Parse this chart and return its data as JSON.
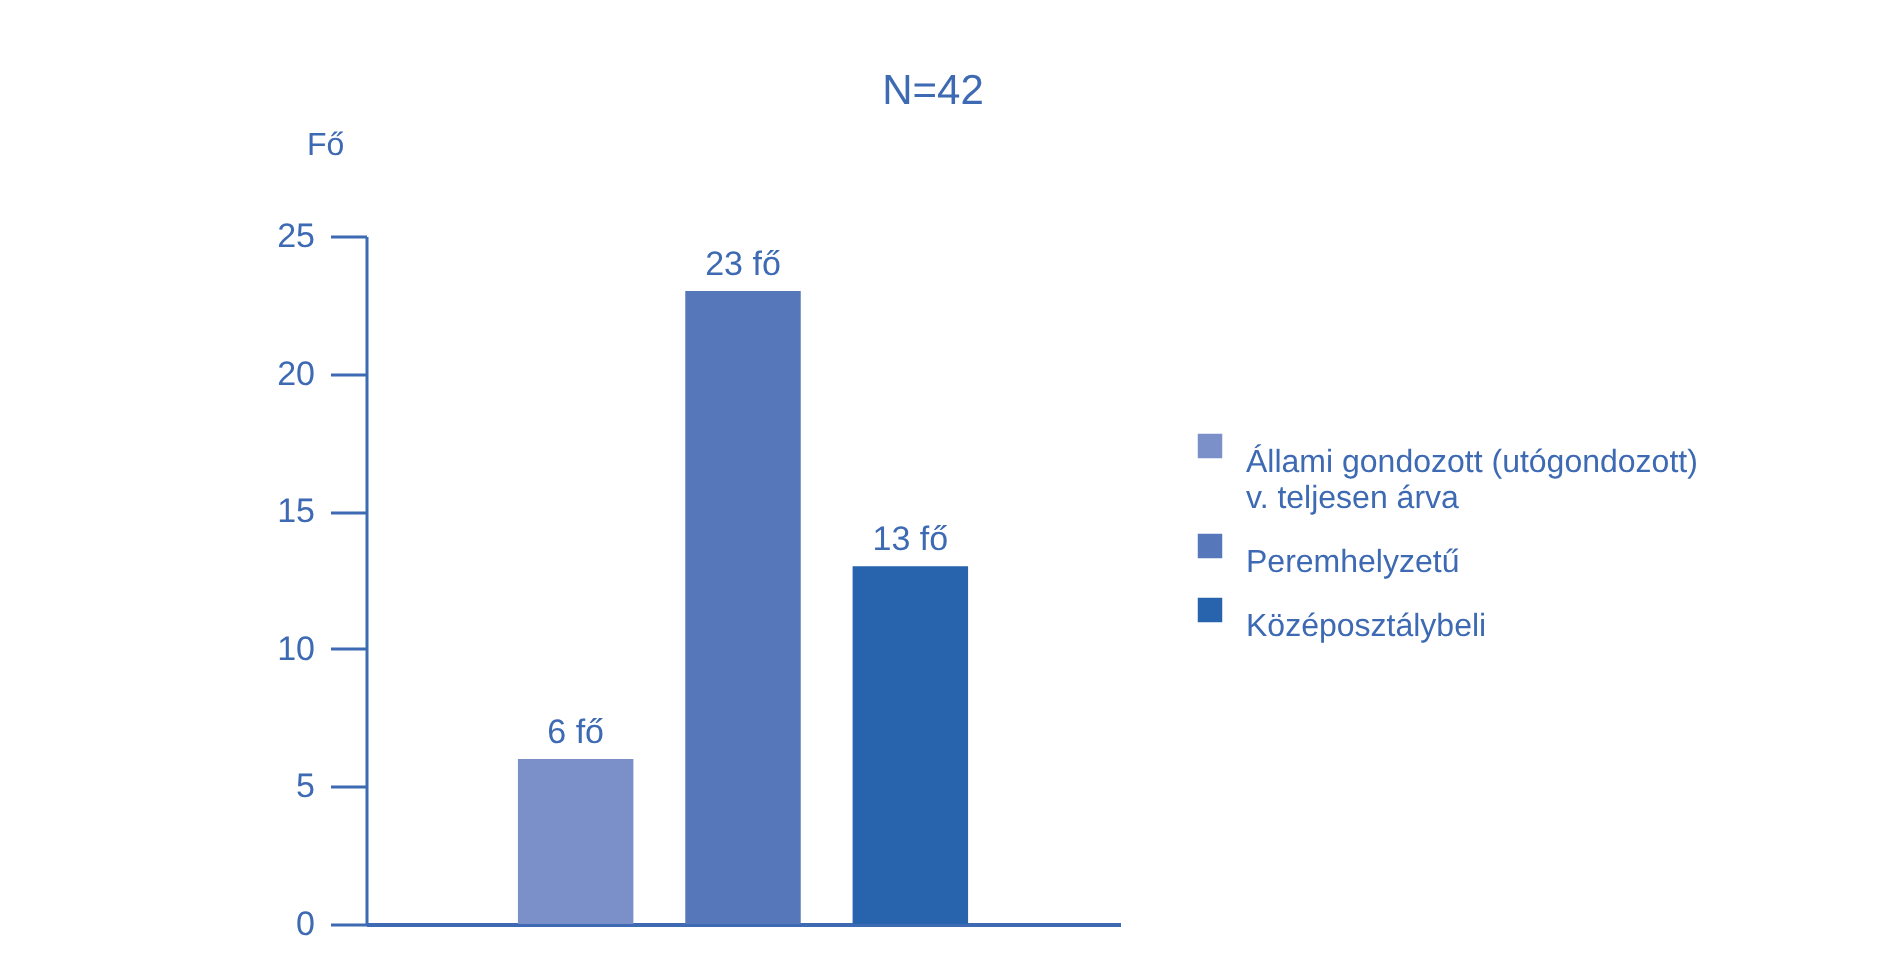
{
  "chart_data": {
    "type": "bar",
    "title": "N=42",
    "ylabel": "Fő",
    "categories": [
      null
    ],
    "series": [
      {
        "name": "Állami gondozott (utógondozott) v. teljesen árva",
        "color": "#7b90c8",
        "values": [
          6
        ],
        "value_labels": [
          "6 fő"
        ]
      },
      {
        "name": "Peremhelyzetű",
        "color": "#5677b9",
        "values": [
          23
        ],
        "value_labels": [
          "23 fő"
        ]
      },
      {
        "name": "Középosztálybeli",
        "color": "#2863ae",
        "values": [
          13
        ],
        "value_labels": [
          "13 fő"
        ]
      }
    ],
    "ylim": [
      0,
      25
    ],
    "yticks": [
      0,
      5,
      10,
      15,
      20,
      25
    ],
    "grid": false,
    "legend": "right"
  }
}
